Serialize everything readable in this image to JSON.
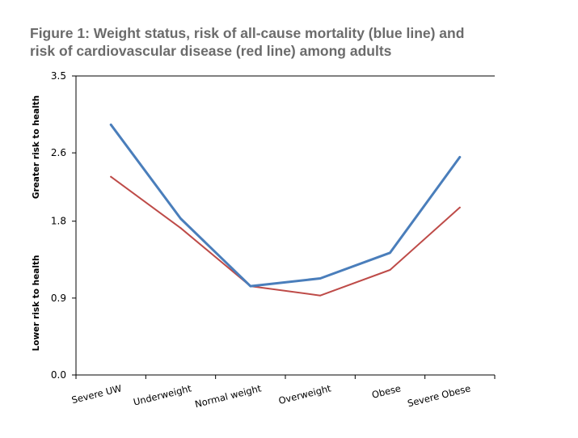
{
  "figure": {
    "title_line1": "Figure 1: Weight status, risk of all-cause mortality (blue line) and",
    "title_line2": "risk of cardiovascular disease (red line) among adults"
  },
  "chart_data": {
    "type": "line",
    "categories": [
      "Severe UW",
      "Underweight",
      "Normal weight",
      "Overweight",
      "Obese",
      "Severe Obese"
    ],
    "yticks": [
      "0.0",
      "0.9",
      "1.8",
      "2.6",
      "3.5"
    ],
    "ylim": [
      0,
      3.5
    ],
    "ylabel_upper": "Greater risk to health",
    "ylabel_lower": "Lower risk to health",
    "grid": false,
    "series": [
      {
        "color": "#4a7ebb",
        "values": [
          2.93,
          1.83,
          1.04,
          1.13,
          1.43,
          2.55
        ]
      },
      {
        "color": "#be4b48",
        "values": [
          2.32,
          1.72,
          1.04,
          0.93,
          1.23,
          1.96
        ]
      }
    ]
  }
}
